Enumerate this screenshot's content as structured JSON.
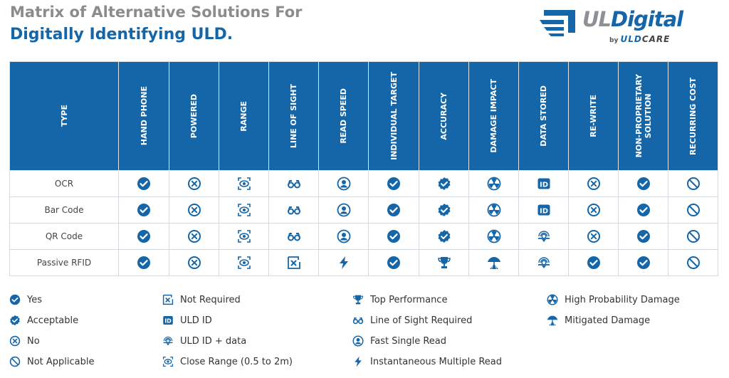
{
  "header": {
    "title_line1": "Matrix of Alternative Solutions For",
    "title_line2": "Digitally Identifying ULD."
  },
  "logo": {
    "brand_ul": "UL",
    "brand_digital": "Digital",
    "by": "by ",
    "care_uld": "ULD",
    "care_rest": "CARE"
  },
  "colors": {
    "brand_blue": "#1466a8",
    "title_gray": "#8a8c8f"
  },
  "columns": [
    "TYPE",
    "HAND PHONE",
    "POWERED",
    "RANGE",
    "LINE OF SIGHT",
    "READ SPEED",
    "INDIVIDUAL TARGET",
    "ACCURACY",
    "DAMAGE IMPACT",
    "DATA STORED",
    "RE-WRITE",
    "NON-PROPRIETARY\nSOLUTION",
    "RECURRING COST"
  ],
  "rows": [
    {
      "type": "OCR",
      "icons": [
        "yes",
        "no",
        "close-range",
        "line-of-sight",
        "fast-single-read",
        "yes",
        "acceptable",
        "high-damage",
        "uld-id",
        "no",
        "yes",
        "not-applicable"
      ]
    },
    {
      "type": "Bar Code",
      "icons": [
        "yes",
        "no",
        "close-range",
        "line-of-sight",
        "fast-single-read",
        "yes",
        "acceptable",
        "high-damage",
        "uld-id",
        "no",
        "yes",
        "not-applicable"
      ]
    },
    {
      "type": "QR Code",
      "icons": [
        "yes",
        "no",
        "close-range",
        "line-of-sight",
        "fast-single-read",
        "yes",
        "acceptable",
        "high-damage",
        "uld-id-data",
        "no",
        "yes",
        "not-applicable"
      ]
    },
    {
      "type": "Passive RFID",
      "icons": [
        "yes",
        "no",
        "close-range",
        "not-required",
        "instant-multi-read",
        "yes",
        "top-performance",
        "mitigated-damage",
        "uld-id-data",
        "yes",
        "yes",
        "not-applicable"
      ]
    }
  ],
  "legend": [
    {
      "icon": "yes",
      "label": "Yes"
    },
    {
      "icon": "acceptable",
      "label": "Acceptable"
    },
    {
      "icon": "no",
      "label": "No"
    },
    {
      "icon": "not-applicable",
      "label": "Not Applicable"
    },
    {
      "icon": "not-required",
      "label": "Not Required"
    },
    {
      "icon": "uld-id",
      "label": "ULD ID"
    },
    {
      "icon": "uld-id-data",
      "label": "ULD ID + data"
    },
    {
      "icon": "close-range",
      "label": "Close Range (0.5 to 2m)"
    },
    {
      "icon": "top-performance",
      "label": "Top Performance"
    },
    {
      "icon": "line-of-sight",
      "label": "Line of Sight Required"
    },
    {
      "icon": "fast-single-read",
      "label": "Fast Single Read"
    },
    {
      "icon": "instant-multi-read",
      "label": "Instantaneous Multiple Read"
    },
    {
      "icon": "high-damage",
      "label": "High Probability Damage"
    },
    {
      "icon": "mitigated-damage",
      "label": "Mitigated Damage"
    }
  ]
}
